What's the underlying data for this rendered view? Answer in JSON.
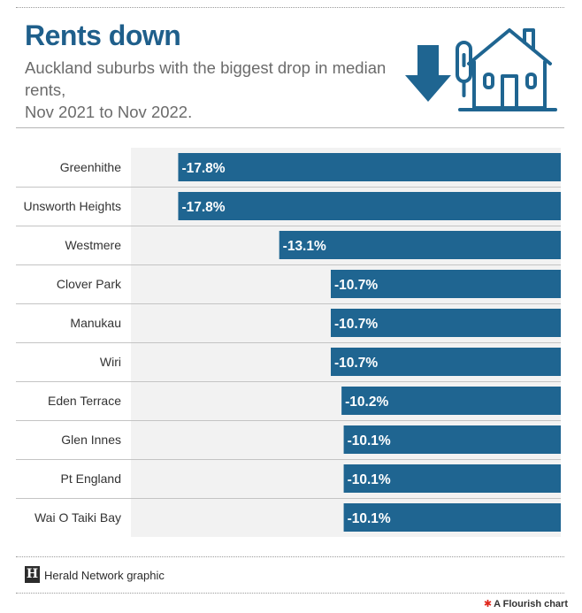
{
  "title": "Rents down",
  "subtitle_lines": [
    "Auckland suburbs with the biggest drop in median",
    "rents,",
    "Nov 2021 to Nov 2022."
  ],
  "icons": {
    "arrow": "down-arrow-icon",
    "house": "house-icon"
  },
  "colors": {
    "bar": "#1f6591",
    "title": "#1f5f8b",
    "band": "#f2f2f2"
  },
  "chart_data": {
    "type": "bar",
    "orientation": "horizontal",
    "categories": [
      "Greenhithe",
      "Unsworth Heights",
      "Westmere",
      "Clover Park",
      "Manukau",
      "Wiri",
      "Eden Terrace",
      "Glen Innes",
      "Pt England",
      "Wai O Taiki Bay"
    ],
    "values": [
      -17.8,
      -17.8,
      -13.1,
      -10.7,
      -10.7,
      -10.7,
      -10.2,
      -10.1,
      -10.1,
      -10.1
    ],
    "labels": [
      "-17.8%",
      "-17.8%",
      "-13.1%",
      "-10.7%",
      "-10.7%",
      "-10.7%",
      "-10.2%",
      "-10.1%",
      "-10.1%",
      "-10.1%"
    ],
    "xlim": [
      -20,
      0
    ],
    "grid": false,
    "legend": "none"
  },
  "footer": {
    "text": "Herald Network graphic",
    "logo_letter": "H",
    "credit": "A Flourish chart"
  }
}
